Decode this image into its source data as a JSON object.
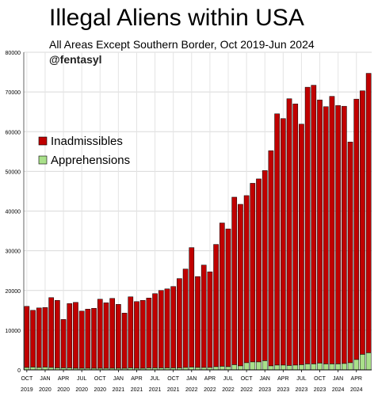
{
  "header": {
    "title": "Illegal Aliens within USA",
    "subtitle": "All Areas Except Southern Border, Oct 2019-Jun 2024",
    "handle": "@fentasyl"
  },
  "colors": {
    "inadmissibles": "#c00000",
    "apprehensions": "#a9e08a",
    "bar_stroke": "#000000"
  },
  "chart_data": {
    "type": "bar",
    "stacked": true,
    "grid": true,
    "legend_position": "upper-left",
    "ylim": [
      0,
      80000
    ],
    "yticks": [
      0,
      10000,
      20000,
      30000,
      40000,
      50000,
      60000,
      70000,
      80000
    ],
    "x_tick_labels": [
      {
        "month": "OCT",
        "year": "2019",
        "index": 0
      },
      {
        "month": "JAN",
        "year": "2020",
        "index": 3
      },
      {
        "month": "APR",
        "year": "2020",
        "index": 6
      },
      {
        "month": "JUL",
        "year": "2020",
        "index": 9
      },
      {
        "month": "OCT",
        "year": "2020",
        "index": 12
      },
      {
        "month": "JAN",
        "year": "2021",
        "index": 15
      },
      {
        "month": "APR",
        "year": "2021",
        "index": 18
      },
      {
        "month": "JUL",
        "year": "2021",
        "index": 21
      },
      {
        "month": "OCT",
        "year": "2021",
        "index": 24
      },
      {
        "month": "JAN",
        "year": "2022",
        "index": 27
      },
      {
        "month": "APR",
        "year": "2022",
        "index": 30
      },
      {
        "month": "JUL",
        "year": "2022",
        "index": 33
      },
      {
        "month": "OCT",
        "year": "2022",
        "index": 36
      },
      {
        "month": "JAN",
        "year": "2023",
        "index": 39
      },
      {
        "month": "APR",
        "year": "2023",
        "index": 42
      },
      {
        "month": "JUL",
        "year": "2023",
        "index": 45
      },
      {
        "month": "OCT",
        "year": "2023",
        "index": 48
      },
      {
        "month": "JAN",
        "year": "2024",
        "index": 51
      },
      {
        "month": "APR",
        "year": "2024",
        "index": 54
      }
    ],
    "series": [
      {
        "name": "Inadmissibles",
        "total_values": [
          16000,
          15000,
          15600,
          15700,
          18200,
          17500,
          12700,
          16700,
          17000,
          14800,
          15300,
          15500,
          17800,
          16900,
          18000,
          16500,
          14300,
          18400,
          17200,
          17500,
          18100,
          19200,
          20000,
          20400,
          21000,
          23000,
          25400,
          30800,
          23500,
          26400,
          24700,
          31600,
          37000,
          35500,
          43500,
          41700,
          43900,
          47000,
          48100,
          50200,
          55200,
          64500,
          63300,
          68300,
          67000,
          61900,
          71200,
          71700,
          68000,
          66300,
          68900,
          66600,
          66400,
          57400,
          68200,
          70300,
          74700
        ]
      },
      {
        "name": "Apprehensions",
        "values": [
          600,
          700,
          600,
          700,
          600,
          500,
          500,
          500,
          400,
          400,
          400,
          400,
          400,
          400,
          400,
          400,
          400,
          500,
          400,
          400,
          500,
          500,
          500,
          500,
          500,
          500,
          600,
          700,
          600,
          600,
          600,
          800,
          900,
          800,
          1300,
          1000,
          1800,
          2000,
          2000,
          2300,
          1000,
          1200,
          1200,
          1100,
          1200,
          1300,
          1500,
          1500,
          1700,
          1500,
          1500,
          1500,
          1600,
          1800,
          2600,
          3900,
          4300
        ]
      }
    ]
  }
}
